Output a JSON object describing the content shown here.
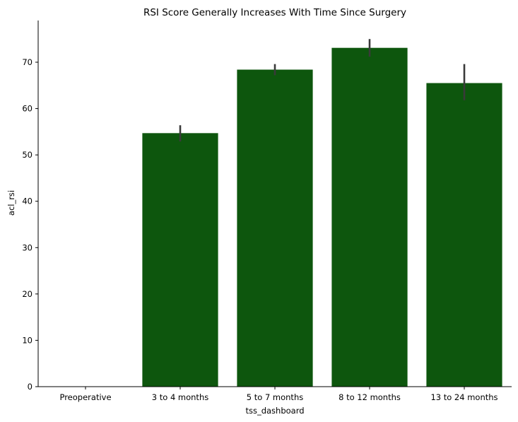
{
  "chart_data": {
    "type": "bar",
    "title": "RSI Score Generally Increases With Time Since Surgery",
    "xlabel": "tss_dashboard",
    "ylabel": "acl_rsi",
    "categories": [
      "Preoperative",
      "3 to 4 months",
      "5 to 7 months",
      "8 to 12 months",
      "13 to 24 months"
    ],
    "values": [
      null,
      54.7,
      68.4,
      73.1,
      65.5
    ],
    "error_low": [
      null,
      52.9,
      67.2,
      71.2,
      61.8
    ],
    "error_high": [
      null,
      56.4,
      69.6,
      75.0,
      69.6
    ],
    "ylim": [
      0,
      79
    ],
    "yticks": [
      0,
      10,
      20,
      30,
      40,
      50,
      60,
      70
    ],
    "grid": false,
    "bar_color": "#0d560d",
    "error_color": "#3a3a3a",
    "axis_color": "#000000"
  }
}
